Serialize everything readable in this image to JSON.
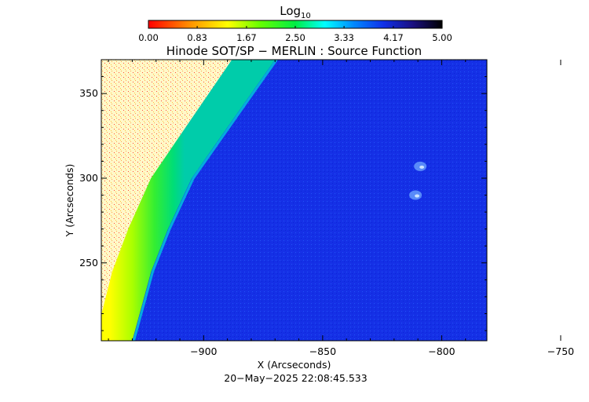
{
  "chart_data": {
    "type": "heatmap",
    "title": "Hinode SOT/SP − MERLIN : Source Function",
    "xlabel": "X (Arcseconds)",
    "ylabel": "Y (Arcseconds)",
    "timestamp": "20−May−2025 22:08:45.533",
    "xlim": [
      -943,
      -781
    ],
    "ylim": [
      204,
      370
    ],
    "x_ticks": [
      -900,
      -850,
      -800,
      -750
    ],
    "x_tick_labels": [
      "−900",
      "−850",
      "−800",
      "−750"
    ],
    "y_ticks": [
      250,
      300,
      350
    ],
    "y_tick_labels": [
      "250",
      "300",
      "350"
    ],
    "colorbar": {
      "label_base": "Log",
      "label_subscript": "10",
      "range": [
        0.0,
        5.0
      ],
      "tick_values": [
        0.0,
        0.83,
        1.67,
        2.5,
        3.33,
        4.17,
        5.0
      ],
      "tick_labels": [
        "0.00",
        "0.83",
        "1.67",
        "2.50",
        "3.33",
        "4.17",
        "5.00"
      ],
      "colormap": "rainbow (red → yellow → green → cyan → blue → black)"
    },
    "limb": {
      "description": "solar limb arc; off-disk region at upper-left",
      "limb_points_arcsec": [
        [
          -870,
          370
        ],
        [
          -880,
          350
        ],
        [
          -895,
          320
        ],
        [
          -905,
          300
        ],
        [
          -915,
          270
        ],
        [
          -922,
          245
        ],
        [
          -930,
          204
        ]
      ],
      "on_disk_log_value": 4.0,
      "limb_band_log_value": 2.5,
      "off_disk_log_value": 1.2
    },
    "features": [
      {
        "name": "bright structure",
        "x": -809,
        "y": 307
      },
      {
        "name": "bright structure",
        "x": -811,
        "y": 290
      }
    ],
    "grid": false,
    "legend": "none"
  }
}
